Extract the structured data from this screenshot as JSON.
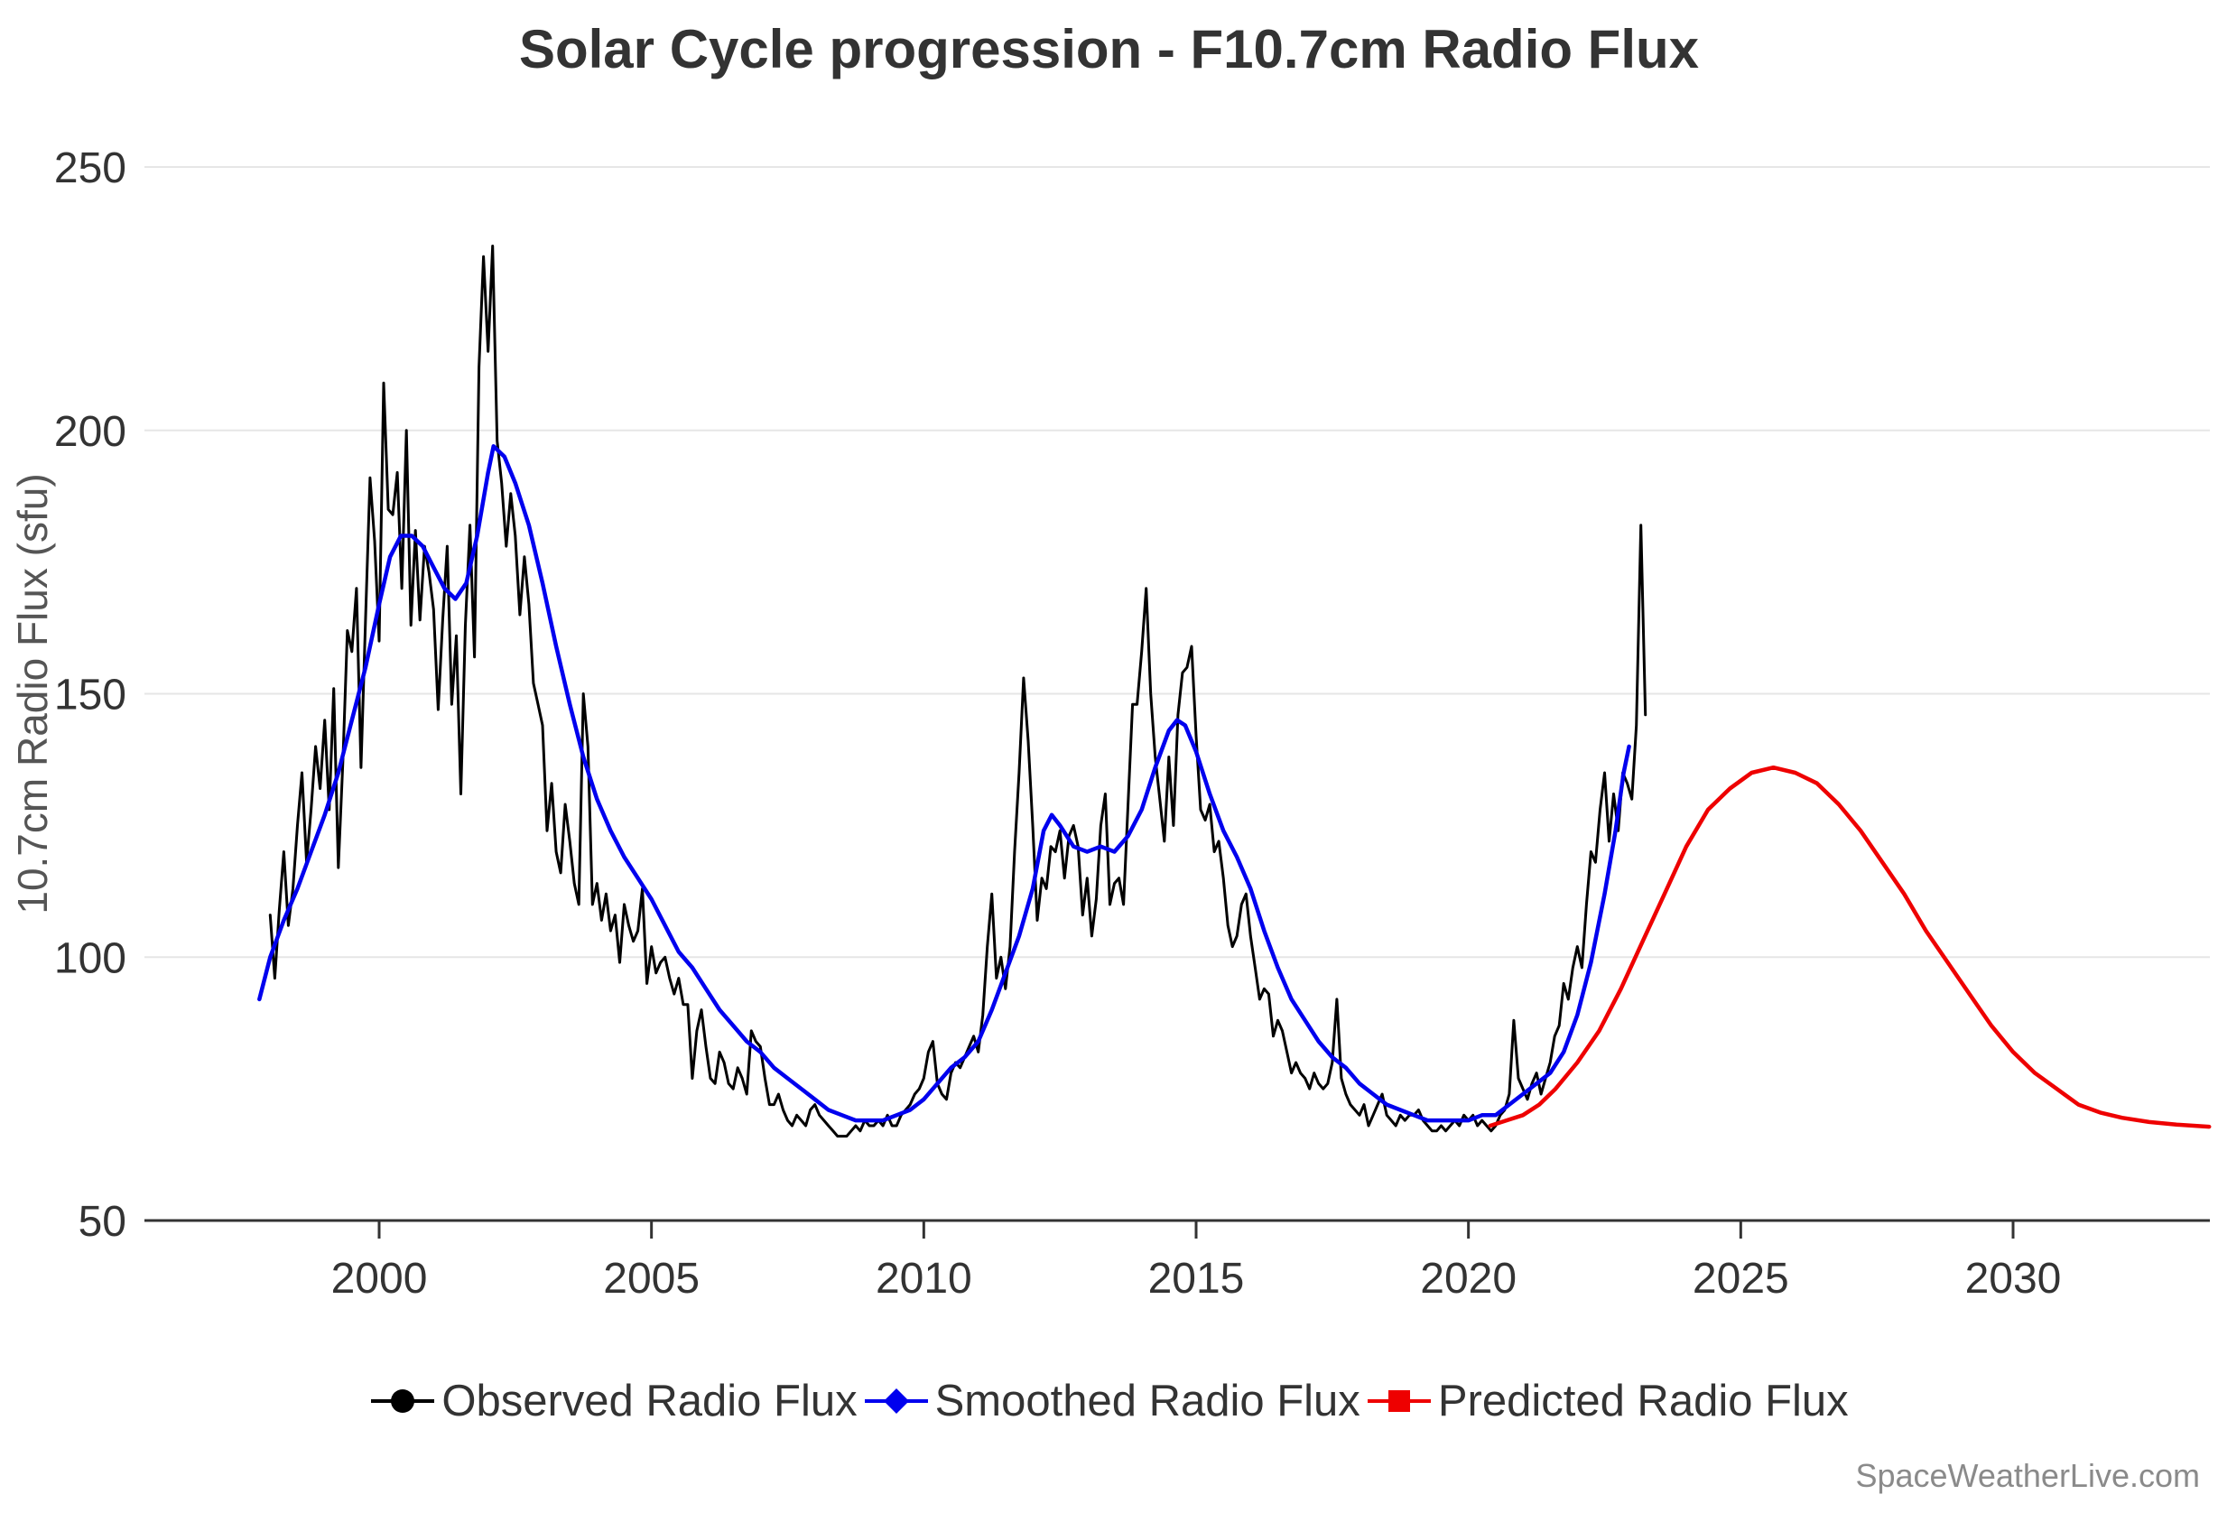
{
  "footer": {
    "watermark": "SpaceWeatherLive.com"
  },
  "chart_data": {
    "type": "line",
    "title": "Solar Cycle progression - F10.7cm Radio Flux",
    "xlabel": "",
    "ylabel": "10.7cm Radio Flux (sfu)",
    "xlim": [
      1997.3,
      2033.9
    ],
    "ylim": [
      50,
      250
    ],
    "x_ticks": [
      2000,
      2005,
      2010,
      2015,
      2020,
      2025,
      2030
    ],
    "y_ticks": [
      50,
      100,
      150,
      200,
      250
    ],
    "grid": "horizontal",
    "grid_color": "#e6e6e6",
    "axis_color": "#333333",
    "background": "#ffffff",
    "legend_position": "bottom",
    "series": [
      {
        "name": "Observed Radio Flux",
        "color": "#000000",
        "marker": "circle",
        "line_width": 3,
        "cadence": "monthly",
        "x_start": 1998.0,
        "values": [
          108,
          96,
          109,
          120,
          106,
          113,
          125,
          135,
          118,
          128,
          140,
          132,
          145,
          128,
          151,
          117,
          137,
          162,
          158,
          170,
          136,
          164,
          191,
          179,
          160,
          209,
          185,
          184,
          192,
          170,
          200,
          163,
          181,
          164,
          178,
          173,
          166,
          147,
          164,
          178,
          148,
          161,
          131,
          163,
          182,
          157,
          212,
          233,
          215,
          235,
          198,
          190,
          178,
          188,
          180,
          165,
          176,
          167,
          152,
          148,
          144,
          124,
          133,
          120,
          116,
          129,
          122,
          114,
          110,
          150,
          140,
          110,
          114,
          107,
          112,
          105,
          108,
          99,
          110,
          106,
          103,
          105,
          113,
          95,
          102,
          97,
          99,
          100,
          96,
          93,
          96,
          91,
          91,
          77,
          86,
          90,
          83,
          77,
          76,
          82,
          80,
          76,
          75,
          79,
          77,
          74,
          86,
          84,
          83,
          77,
          72,
          72,
          74,
          71,
          69,
          68,
          70,
          69,
          68,
          71,
          72,
          70,
          69,
          68,
          67,
          66,
          66,
          66,
          67,
          68,
          67,
          69,
          68,
          68,
          69,
          68,
          70,
          68,
          68,
          70,
          71,
          72,
          74,
          75,
          77,
          82,
          84,
          76,
          74,
          73,
          78,
          80,
          79,
          81,
          83,
          85,
          82,
          89,
          102,
          112,
          96,
          100,
          94,
          102,
          120,
          135,
          153,
          141,
          125,
          107,
          115,
          113,
          121,
          120,
          124,
          115,
          123,
          125,
          121,
          108,
          115,
          104,
          111,
          125,
          131,
          110,
          114,
          115,
          110,
          129,
          148,
          148,
          158,
          170,
          150,
          138,
          130,
          122,
          138,
          125,
          146,
          154,
          155,
          159,
          142,
          128,
          126,
          129,
          120,
          122,
          115,
          106,
          102,
          104,
          110,
          112,
          104,
          98,
          92,
          94,
          93,
          85,
          88,
          86,
          82,
          78,
          80,
          78,
          77,
          75,
          78,
          76,
          75,
          76,
          80,
          92,
          77,
          74,
          72,
          71,
          70,
          72,
          68,
          70,
          72,
          74,
          70,
          69,
          68,
          70,
          69,
          70,
          70,
          71,
          69,
          68,
          67,
          67,
          68,
          67,
          68,
          69,
          68,
          70,
          69,
          70,
          68,
          69,
          68,
          67,
          68,
          70,
          71,
          74,
          88,
          77,
          75,
          73,
          76,
          78,
          74,
          77,
          80,
          85,
          87,
          95,
          92,
          98,
          102,
          98,
          110,
          120,
          118,
          128,
          135,
          122,
          131,
          124,
          135,
          133,
          130,
          144,
          182,
          146
        ]
      },
      {
        "name": "Smoothed Radio Flux",
        "color": "#0000ee",
        "marker": "diamond",
        "line_width": 4.5,
        "points": [
          [
            1997.8,
            92
          ],
          [
            1998.0,
            100
          ],
          [
            1998.25,
            107
          ],
          [
            1998.5,
            113
          ],
          [
            1998.75,
            120
          ],
          [
            1999.0,
            127
          ],
          [
            1999.25,
            135
          ],
          [
            1999.5,
            145
          ],
          [
            1999.75,
            155
          ],
          [
            2000.0,
            167
          ],
          [
            2000.2,
            176
          ],
          [
            2000.4,
            180
          ],
          [
            2000.6,
            180
          ],
          [
            2000.8,
            178
          ],
          [
            2001.0,
            174
          ],
          [
            2001.2,
            170
          ],
          [
            2001.4,
            168
          ],
          [
            2001.6,
            171
          ],
          [
            2001.8,
            180
          ],
          [
            2002.0,
            192
          ],
          [
            2002.1,
            197
          ],
          [
            2002.3,
            195
          ],
          [
            2002.5,
            190
          ],
          [
            2002.75,
            182
          ],
          [
            2003.0,
            171
          ],
          [
            2003.25,
            159
          ],
          [
            2003.5,
            148
          ],
          [
            2003.75,
            138
          ],
          [
            2004.0,
            130
          ],
          [
            2004.25,
            124
          ],
          [
            2004.5,
            119
          ],
          [
            2004.75,
            115
          ],
          [
            2005.0,
            111
          ],
          [
            2005.25,
            106
          ],
          [
            2005.5,
            101
          ],
          [
            2005.75,
            98
          ],
          [
            2006.0,
            94
          ],
          [
            2006.25,
            90
          ],
          [
            2006.5,
            87
          ],
          [
            2006.75,
            84
          ],
          [
            2007.0,
            82
          ],
          [
            2007.25,
            79
          ],
          [
            2007.5,
            77
          ],
          [
            2007.75,
            75
          ],
          [
            2008.0,
            73
          ],
          [
            2008.25,
            71
          ],
          [
            2008.5,
            70
          ],
          [
            2008.75,
            69
          ],
          [
            2009.0,
            69
          ],
          [
            2009.25,
            69
          ],
          [
            2009.5,
            70
          ],
          [
            2009.75,
            71
          ],
          [
            2010.0,
            73
          ],
          [
            2010.25,
            76
          ],
          [
            2010.5,
            79
          ],
          [
            2010.75,
            81
          ],
          [
            2011.0,
            84
          ],
          [
            2011.25,
            90
          ],
          [
            2011.5,
            97
          ],
          [
            2011.75,
            104
          ],
          [
            2012.0,
            113
          ],
          [
            2012.2,
            124
          ],
          [
            2012.35,
            127
          ],
          [
            2012.5,
            125
          ],
          [
            2012.75,
            121
          ],
          [
            2013.0,
            120
          ],
          [
            2013.25,
            121
          ],
          [
            2013.5,
            120
          ],
          [
            2013.75,
            123
          ],
          [
            2014.0,
            128
          ],
          [
            2014.25,
            136
          ],
          [
            2014.5,
            143
          ],
          [
            2014.65,
            145
          ],
          [
            2014.8,
            144
          ],
          [
            2015.0,
            139
          ],
          [
            2015.25,
            131
          ],
          [
            2015.5,
            124
          ],
          [
            2015.75,
            119
          ],
          [
            2016.0,
            113
          ],
          [
            2016.25,
            105
          ],
          [
            2016.5,
            98
          ],
          [
            2016.75,
            92
          ],
          [
            2017.0,
            88
          ],
          [
            2017.25,
            84
          ],
          [
            2017.5,
            81
          ],
          [
            2017.75,
            79
          ],
          [
            2018.0,
            76
          ],
          [
            2018.25,
            74
          ],
          [
            2018.5,
            72
          ],
          [
            2018.75,
            71
          ],
          [
            2019.0,
            70
          ],
          [
            2019.25,
            69
          ],
          [
            2019.5,
            69
          ],
          [
            2019.75,
            69
          ],
          [
            2020.0,
            69
          ],
          [
            2020.25,
            70
          ],
          [
            2020.5,
            70
          ],
          [
            2020.75,
            72
          ],
          [
            2021.0,
            74
          ],
          [
            2021.25,
            76
          ],
          [
            2021.5,
            78
          ],
          [
            2021.75,
            82
          ],
          [
            2022.0,
            89
          ],
          [
            2022.25,
            99
          ],
          [
            2022.5,
            112
          ],
          [
            2022.7,
            124
          ],
          [
            2022.85,
            135
          ],
          [
            2022.95,
            140
          ]
        ]
      },
      {
        "name": "Predicted Radio Flux",
        "color": "#ee0000",
        "marker": "square",
        "line_width": 4.5,
        "points": [
          [
            2020.4,
            68
          ],
          [
            2020.7,
            69
          ],
          [
            2021.0,
            70
          ],
          [
            2021.3,
            72
          ],
          [
            2021.6,
            75
          ],
          [
            2022.0,
            80
          ],
          [
            2022.4,
            86
          ],
          [
            2022.8,
            94
          ],
          [
            2023.2,
            103
          ],
          [
            2023.6,
            112
          ],
          [
            2024.0,
            121
          ],
          [
            2024.4,
            128
          ],
          [
            2024.8,
            132
          ],
          [
            2025.2,
            135
          ],
          [
            2025.6,
            136
          ],
          [
            2026.0,
            135
          ],
          [
            2026.4,
            133
          ],
          [
            2026.8,
            129
          ],
          [
            2027.2,
            124
          ],
          [
            2027.6,
            118
          ],
          [
            2028.0,
            112
          ],
          [
            2028.4,
            105
          ],
          [
            2028.8,
            99
          ],
          [
            2029.2,
            93
          ],
          [
            2029.6,
            87
          ],
          [
            2030.0,
            82
          ],
          [
            2030.4,
            78
          ],
          [
            2030.8,
            75
          ],
          [
            2031.2,
            72
          ],
          [
            2031.6,
            70.5
          ],
          [
            2032.0,
            69.5
          ],
          [
            2032.5,
            68.7
          ],
          [
            2033.0,
            68.2
          ],
          [
            2033.6,
            67.8
          ]
        ]
      }
    ]
  }
}
